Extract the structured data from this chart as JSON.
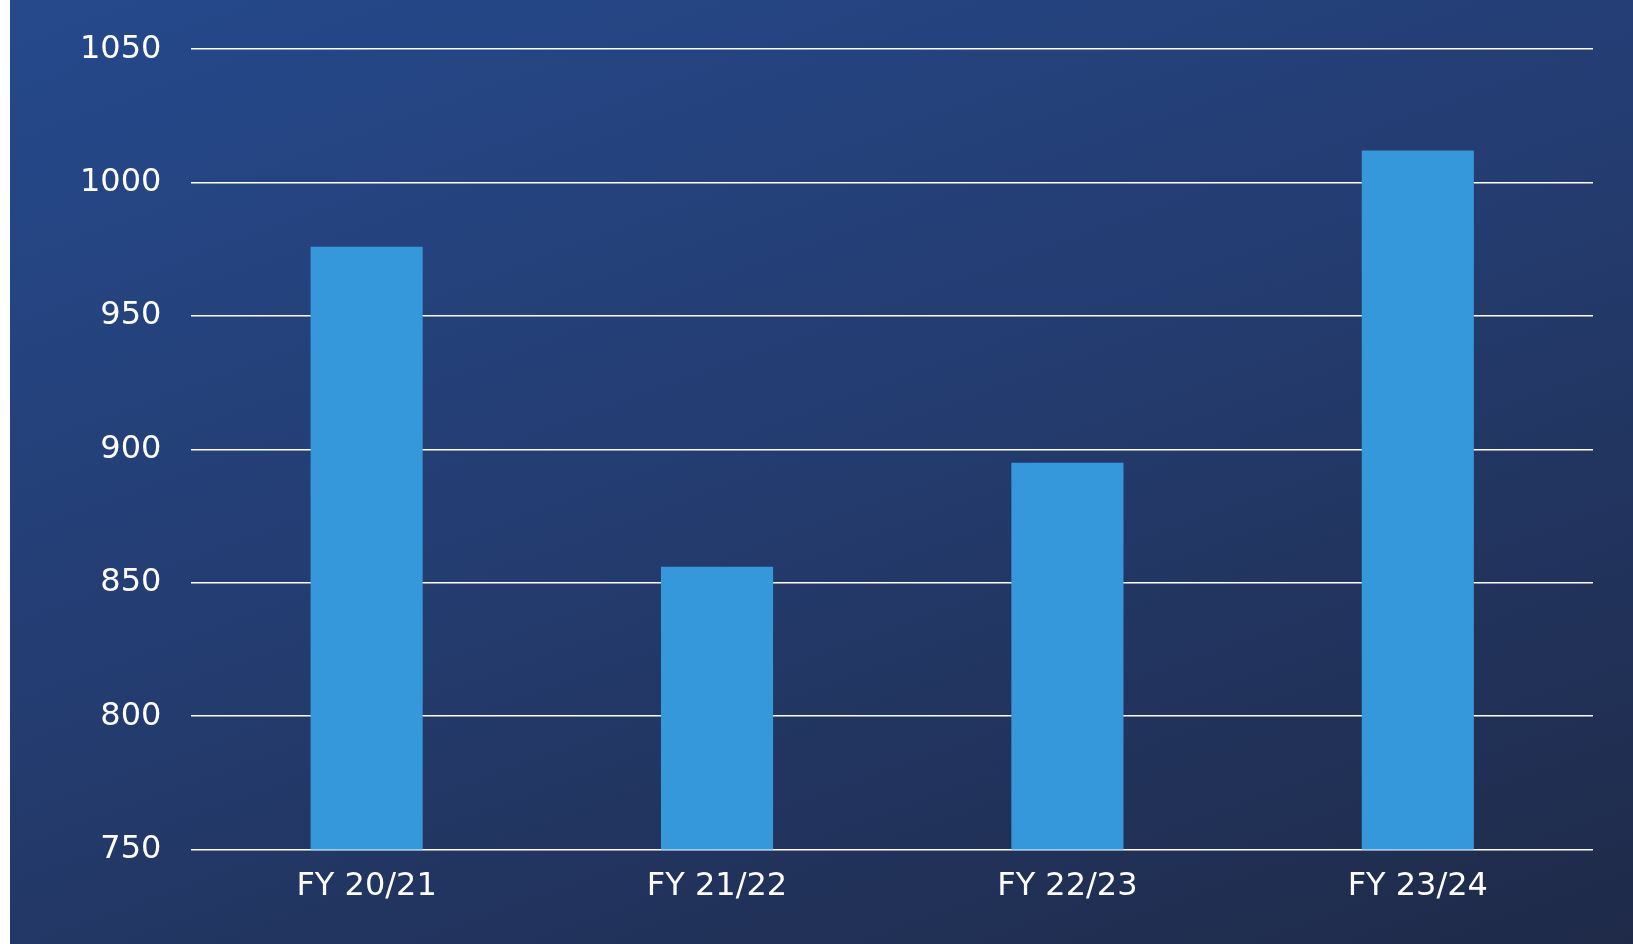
{
  "chart_data": {
    "type": "bar",
    "categories": [
      "FY 20/21",
      "FY 21/22",
      "FY 22/23",
      "FY 23/24"
    ],
    "values": [
      976,
      856,
      895,
      1012
    ],
    "color": "#3598db",
    "ylim": [
      750,
      1050
    ],
    "yticks": [
      750,
      800,
      850,
      900,
      950,
      1000,
      1050
    ],
    "grid": "y"
  }
}
